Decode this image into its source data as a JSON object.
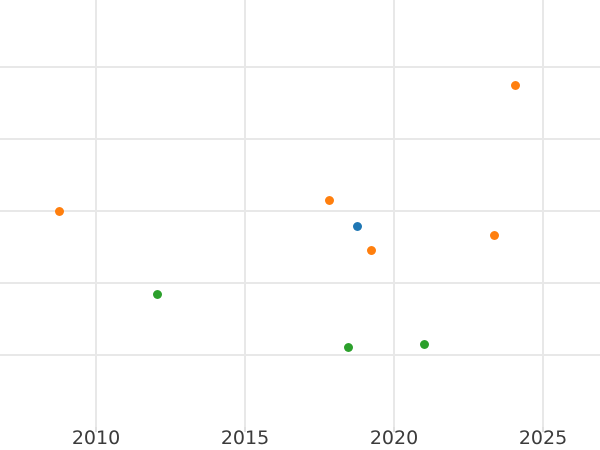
{
  "figure": {
    "background": "#ffffff",
    "grid_color": "#e8e8e8",
    "tick_color": "#e0e0e0",
    "tick_label_color": "#3b3b3b"
  },
  "chart_data": {
    "type": "scatter",
    "title": "",
    "xlabel": "",
    "ylabel": "",
    "x_tick_labels": [
      "2010",
      "2015",
      "2020",
      "2025"
    ],
    "x_ticks": [
      2010,
      2015,
      2020,
      2025
    ],
    "xlim": [
      2006.78,
      2026.91
    ],
    "ylim": [
      0,
      5.93
    ],
    "y_gridline_values": [
      1,
      2,
      3,
      4,
      5
    ],
    "y_axis_note": "y-axis unlabeled in image; y values estimated in gridline units (1 unit = one gridline spacing above plot bottom edge)",
    "grid": true,
    "legend_position": "none",
    "marker_diameter_px": 9,
    "series": [
      {
        "name": "orange",
        "color": "#ff7f0e",
        "points": [
          {
            "x": 2008.77,
            "y": 3.0
          },
          {
            "x": 2017.84,
            "y": 3.14
          },
          {
            "x": 2019.25,
            "y": 2.45
          },
          {
            "x": 2023.37,
            "y": 2.66
          },
          {
            "x": 2024.08,
            "y": 4.75
          }
        ]
      },
      {
        "name": "green",
        "color": "#2ca02c",
        "points": [
          {
            "x": 2012.08,
            "y": 1.84
          },
          {
            "x": 2018.47,
            "y": 1.11
          },
          {
            "x": 2021.04,
            "y": 1.14
          }
        ]
      },
      {
        "name": "blue",
        "color": "#1f77b4",
        "points": [
          {
            "x": 2018.78,
            "y": 2.79
          }
        ]
      }
    ]
  }
}
